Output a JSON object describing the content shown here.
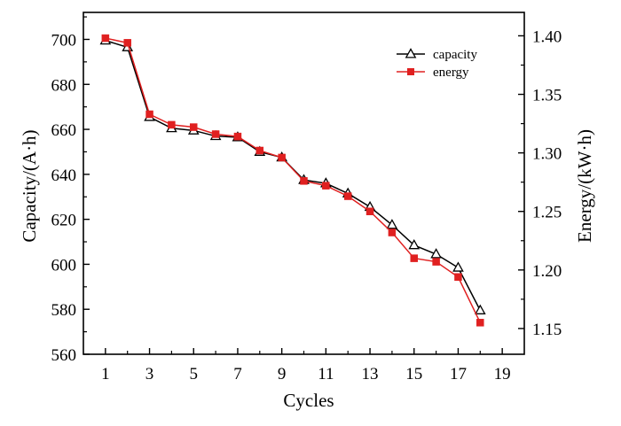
{
  "chart_data": {
    "type": "line",
    "xlabel": "Cycles",
    "ylabel_left": "Capacity/(A·h)",
    "ylabel_right": "Energy/(kW·h)",
    "xlim": [
      0,
      20
    ],
    "ylim_left": [
      560,
      712
    ],
    "ylim_right": [
      1.128,
      1.42
    ],
    "x_ticks": [
      1,
      3,
      5,
      7,
      9,
      11,
      13,
      15,
      17,
      19
    ],
    "y_ticks_left": [
      560,
      580,
      600,
      620,
      640,
      660,
      680,
      700
    ],
    "y_ticks_right": [
      1.15,
      1.2,
      1.25,
      1.3,
      1.35,
      1.4
    ],
    "y_tick_labels_right": [
      "1.15",
      "1.20",
      "1.25",
      "1.30",
      "1.35",
      "1.40"
    ],
    "grid": false,
    "legend_position": "top-right",
    "colors": {
      "capacity": "#000000",
      "energy": "#e02020"
    },
    "x": [
      1,
      2,
      3,
      4,
      5,
      6,
      7,
      8,
      9,
      10,
      11,
      12,
      13,
      14,
      15,
      16,
      17,
      18
    ],
    "series": [
      {
        "name": "capacity",
        "axis": "left",
        "marker": "open-triangle",
        "values": [
          699.5,
          696.5,
          665.5,
          660.5,
          659.5,
          657,
          656.5,
          650,
          647.5,
          637.5,
          636,
          631.5,
          625.5,
          617.5,
          608.5,
          604.5,
          598.5,
          579.5
        ]
      },
      {
        "name": "energy",
        "axis": "right",
        "marker": "filled-square",
        "values": [
          1.398,
          1.394,
          1.333,
          1.324,
          1.322,
          1.316,
          1.314,
          1.302,
          1.296,
          1.276,
          1.272,
          1.263,
          1.25,
          1.232,
          1.21,
          1.207,
          1.194,
          1.155
        ]
      }
    ]
  }
}
